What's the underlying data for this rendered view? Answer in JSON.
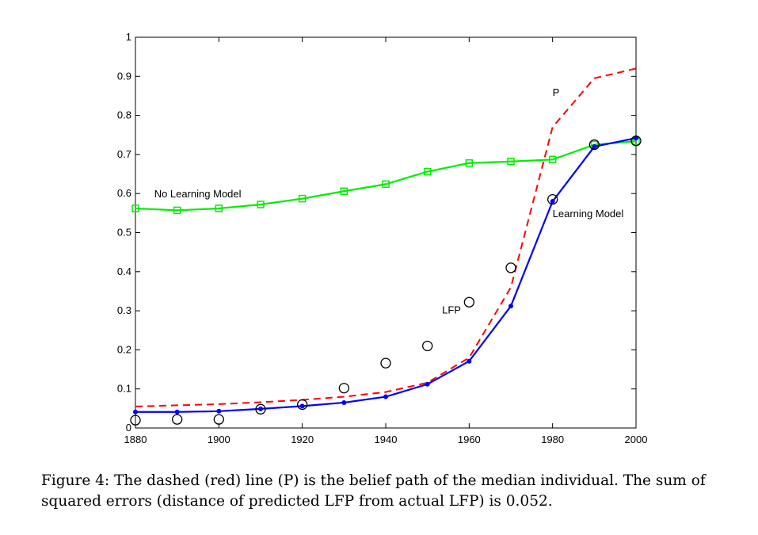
{
  "chart_data": {
    "type": "line",
    "xlim": [
      1880,
      2000
    ],
    "ylim": [
      0,
      1
    ],
    "x_ticks": [
      "1880",
      "1900",
      "1920",
      "1940",
      "1960",
      "1980",
      "2000"
    ],
    "y_ticks": [
      "0",
      "0.1",
      "0.2",
      "0.3",
      "0.4",
      "0.5",
      "0.6",
      "0.7",
      "0.8",
      "0.9",
      "1"
    ],
    "grid": false,
    "series": [
      {
        "name": "P",
        "style": "dashed",
        "color": "#ff0000",
        "x": [
          1880,
          1890,
          1900,
          1910,
          1920,
          1930,
          1940,
          1950,
          1960,
          1970,
          1980,
          1990,
          2000
        ],
        "y": [
          0.055,
          0.058,
          0.061,
          0.066,
          0.072,
          0.08,
          0.092,
          0.116,
          0.18,
          0.36,
          0.77,
          0.895,
          0.92
        ]
      },
      {
        "name": "Learning Model",
        "style": "solid-dot",
        "color": "#0000ff",
        "x": [
          1880,
          1890,
          1900,
          1910,
          1920,
          1930,
          1940,
          1950,
          1960,
          1970,
          1980,
          1990,
          2000
        ],
        "y": [
          0.041,
          0.041,
          0.043,
          0.049,
          0.056,
          0.065,
          0.08,
          0.112,
          0.171,
          0.312,
          0.58,
          0.72,
          0.742
        ]
      },
      {
        "name": "No Learning Model",
        "style": "solid-square",
        "color": "#00ee00",
        "x": [
          1880,
          1890,
          1900,
          1910,
          1920,
          1930,
          1940,
          1950,
          1960,
          1970,
          1980,
          1990,
          2000
        ],
        "y": [
          0.562,
          0.557,
          0.562,
          0.572,
          0.587,
          0.606,
          0.624,
          0.656,
          0.678,
          0.682,
          0.687,
          0.725,
          0.734
        ]
      },
      {
        "name": "LFP",
        "style": "circle",
        "color": "#000000",
        "x": [
          1880,
          1890,
          1900,
          1910,
          1920,
          1930,
          1940,
          1950,
          1960,
          1970,
          1980,
          1990,
          2000
        ],
        "y": [
          0.02,
          0.022,
          0.022,
          0.048,
          0.06,
          0.102,
          0.166,
          0.21,
          0.322,
          0.41,
          0.585,
          0.725,
          0.735
        ]
      }
    ],
    "annotations": [
      {
        "text": "P",
        "x": 1980,
        "y": 0.85
      },
      {
        "text": "No Learning Model",
        "x": 1884.5,
        "y": 0.59
      },
      {
        "text": "Learning Model",
        "x": 1980,
        "y": 0.54
      },
      {
        "text": "LFP",
        "x": 1953.5,
        "y": 0.293
      }
    ]
  },
  "caption": "Figure 4: The dashed (red) line (P) is the belief path of the median individual. The sum of squared errors (distance of predicted LFP from actual LFP) is 0.052."
}
